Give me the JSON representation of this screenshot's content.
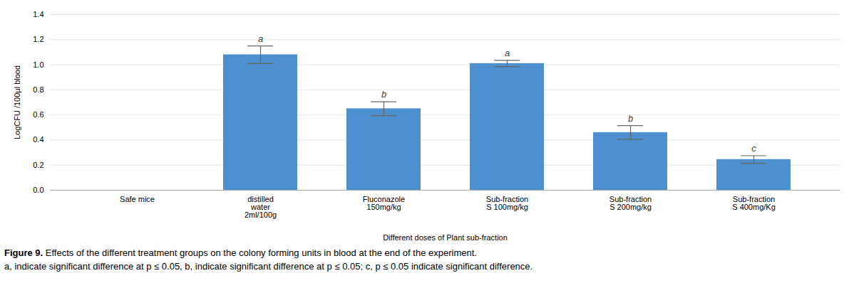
{
  "chart_data": {
    "type": "bar",
    "categories": [
      "Safe mice",
      "distilled\nwater\n2ml/100g",
      "Fluconazole\n150mg/kg",
      "Sub-fraction\nS 100mg/kg",
      "Sub-fraction\nS 200mg/kg",
      "Sub-fraction\nS 400mg/Kg"
    ],
    "values": [
      0,
      1.08,
      0.65,
      1.01,
      0.46,
      0.245
    ],
    "errors": [
      0,
      0.07,
      0.055,
      0.025,
      0.055,
      0.03
    ],
    "annotations": [
      null,
      "a",
      "b",
      "a",
      "b",
      "c"
    ],
    "color": "#4D90D0",
    "ylabel": "LogCFU /100μl blood",
    "xlabel": "Different doses of Plant sub-fraction",
    "ylim": [
      0,
      1.4
    ],
    "yticks": [
      {
        "value": 0,
        "label": "0.0"
      },
      0.2,
      0.4,
      0.6,
      0.8,
      {
        "value": 1,
        "label": "1.0"
      },
      1.2,
      1.4
    ],
    "grid": true,
    "caption_label": "Figure 9.",
    "caption": [
      "Effects of the different treatment groups on the colony forming units in blood at the end of the experiment.",
      "a, indicate significant difference at p ≤ 0.05, b, indicate significant difference at p ≤ 0.05; c, p ≤ 0.05 indicate significant difference."
    ]
  }
}
